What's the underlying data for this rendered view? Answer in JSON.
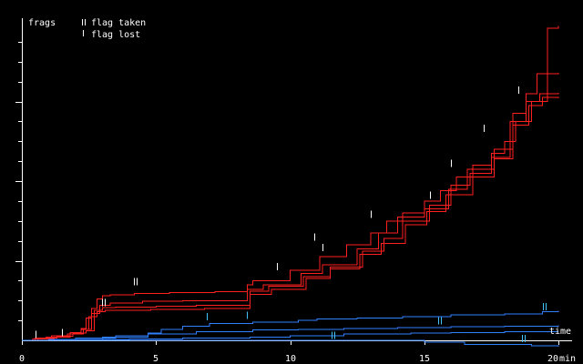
{
  "chart_data": {
    "type": "line",
    "title": "",
    "ylabel": "frags",
    "xlabel": "time",
    "x_unit": "min",
    "xlim": [
      0,
      20
    ],
    "ylim": [
      0,
      400
    ],
    "x_ticks": [
      0,
      5,
      10,
      15,
      20
    ],
    "x_tick_labels": [
      "0",
      "5",
      "10",
      "15",
      "20"
    ],
    "y_minor_ticks": [
      25,
      50,
      75,
      125,
      150,
      175,
      225,
      250,
      275,
      325,
      350,
      375
    ],
    "y_major_ticks": [
      100,
      200,
      300
    ],
    "grid": false,
    "legend": {
      "placement": "top-left",
      "items": [
        {
          "label": "flag taken",
          "marker": "double-tick"
        },
        {
          "label": "flag lost",
          "marker": "single-tick"
        }
      ]
    },
    "colors": {
      "team_red": "#ff2020",
      "team_blue": "#2f7fff",
      "axes": "#ffffff",
      "background": "#000000"
    },
    "series": [
      {
        "team": "red",
        "x": [
          0,
          0.4,
          0.9,
          1.4,
          1.8,
          2.2,
          2.4,
          2.6,
          2.8,
          3.0,
          3.3,
          4.2,
          5.5,
          7.2,
          8.4,
          8.6,
          10.0,
          11.1,
          12.1,
          13.0,
          13.6,
          14.2,
          15.0,
          15.6,
          16.2,
          16.8,
          17.5,
          18.0,
          18.4,
          19.0,
          19.6,
          20.0
        ],
        "y": [
          0,
          2,
          4,
          6,
          10,
          15,
          28,
          40,
          52,
          56,
          57,
          59,
          60,
          61,
          70,
          75,
          88,
          105,
          120,
          135,
          150,
          160,
          175,
          188,
          205,
          220,
          235,
          250,
          275,
          300,
          392,
          395
        ]
      },
      {
        "team": "red",
        "x": [
          0,
          0.5,
          1.2,
          1.8,
          2.3,
          2.6,
          2.9,
          3.3,
          4.5,
          6.0,
          8.4,
          9.0,
          10.4,
          11.2,
          12.5,
          13.3,
          14.0,
          15.0,
          15.9,
          16.6,
          17.6,
          18.3,
          18.8,
          19.2,
          20.0
        ],
        "y": [
          0,
          2,
          4,
          8,
          14,
          34,
          44,
          47,
          49,
          50,
          64,
          70,
          84,
          95,
          115,
          135,
          155,
          165,
          190,
          215,
          240,
          285,
          310,
          335,
          336
        ]
      },
      {
        "team": "red",
        "x": [
          0,
          0.6,
          1.3,
          1.9,
          2.4,
          2.7,
          3.0,
          3.5,
          5.0,
          6.5,
          8.5,
          9.2,
          10.5,
          11.5,
          12.7,
          13.5,
          14.2,
          15.2,
          16.0,
          16.7,
          17.5,
          18.2,
          18.8,
          19.3,
          20.0
        ],
        "y": [
          0,
          3,
          5,
          9,
          12,
          38,
          41,
          42,
          43,
          44,
          62,
          68,
          80,
          92,
          112,
          128,
          150,
          170,
          195,
          210,
          230,
          275,
          300,
          310,
          311
        ]
      },
      {
        "team": "red",
        "x": [
          0,
          0.5,
          1.1,
          1.7,
          2.2,
          2.5,
          2.8,
          3.1,
          4.8,
          6.8,
          8.5,
          9.3,
          10.6,
          11.5,
          12.6,
          13.4,
          14.3,
          15.1,
          15.8,
          16.8,
          17.6,
          18.3,
          18.9,
          19.4,
          20.0
        ],
        "y": [
          0,
          3,
          6,
          8,
          14,
          30,
          36,
          38,
          39,
          40,
          58,
          64,
          78,
          90,
          108,
          122,
          145,
          162,
          183,
          205,
          228,
          270,
          295,
          305,
          304
        ]
      },
      {
        "team": "blue",
        "x": [
          0,
          1.0,
          2.0,
          3.5,
          4.7,
          5.2,
          6.0,
          7.0,
          8.6,
          10.3,
          11.0,
          12.5,
          14.2,
          16.0,
          18.0,
          19.4,
          20.0
        ],
        "y": [
          0,
          1,
          3,
          6,
          9,
          14,
          18,
          21,
          23,
          25,
          27,
          28,
          30,
          32,
          33,
          36,
          37
        ]
      },
      {
        "team": "blue",
        "x": [
          0,
          1.5,
          3.0,
          4.7,
          6.5,
          8.6,
          10.3,
          12.0,
          14.0,
          16.0,
          18.0,
          20.0
        ],
        "y": [
          0,
          1,
          4,
          8,
          11,
          13,
          14,
          15,
          16,
          17,
          18,
          19
        ]
      },
      {
        "team": "blue",
        "x": [
          0,
          2.0,
          4.0,
          6.0,
          8.5,
          10.0,
          12.0,
          14.5,
          16.0,
          18.0,
          20.0
        ],
        "y": [
          0,
          1,
          2,
          3,
          4,
          6,
          8,
          9,
          10,
          11,
          11
        ]
      },
      {
        "team": "blue",
        "x": [
          0,
          3.0,
          6.0,
          9.0,
          12.0,
          15.0,
          16.5,
          19.0,
          20.0
        ],
        "y": [
          0,
          0,
          0,
          0,
          0,
          -2,
          -5,
          -7,
          -8
        ]
      }
    ],
    "flag_events": [
      {
        "team": "red",
        "type": "taken",
        "x": 4.25,
        "y": 69
      },
      {
        "team": "red",
        "type": "taken",
        "x": 3.05,
        "y": 43
      },
      {
        "team": "red",
        "type": "lost",
        "x": 1.5,
        "y": 5
      },
      {
        "team": "red",
        "type": "lost",
        "x": 0.5,
        "y": 3
      },
      {
        "team": "red",
        "type": "lost",
        "x": 9.5,
        "y": 88
      },
      {
        "team": "red",
        "type": "lost",
        "x": 10.9,
        "y": 125
      },
      {
        "team": "red",
        "type": "lost",
        "x": 13.0,
        "y": 154
      },
      {
        "team": "red",
        "type": "lost",
        "x": 16.0,
        "y": 218
      },
      {
        "team": "red",
        "type": "lost",
        "x": 17.2,
        "y": 262
      },
      {
        "team": "red",
        "type": "lost",
        "x": 18.5,
        "y": 310
      },
      {
        "team": "red",
        "type": "lost",
        "x": 11.2,
        "y": 112
      },
      {
        "team": "red",
        "type": "lost",
        "x": 15.2,
        "y": 178
      },
      {
        "team": "blue",
        "type": "lost",
        "x": 6.9,
        "y": 25
      },
      {
        "team": "blue",
        "type": "lost",
        "x": 8.4,
        "y": 27
      },
      {
        "team": "blue",
        "type": "taken",
        "x": 15.6,
        "y": 20
      },
      {
        "team": "blue",
        "type": "taken",
        "x": 19.5,
        "y": 38
      },
      {
        "team": "blue",
        "type": "taken",
        "x": 11.6,
        "y": 2
      },
      {
        "team": "blue",
        "type": "taken",
        "x": 18.7,
        "y": -2
      }
    ]
  }
}
